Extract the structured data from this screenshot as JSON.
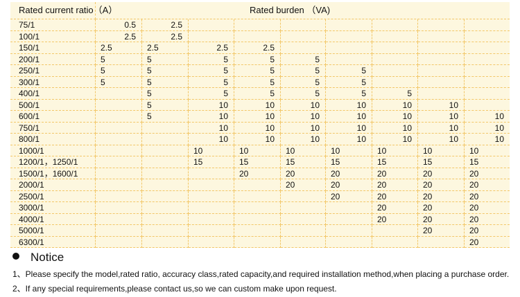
{
  "table": {
    "header": [
      "Rated current ratio（A）",
      "Rated burden （VA)"
    ],
    "rows": [
      [
        "75/1",
        "0.5",
        "2.5",
        null,
        null,
        null,
        null,
        null,
        null,
        null
      ],
      [
        "100/1",
        "2.5",
        "2.5",
        null,
        null,
        null,
        null,
        null,
        null,
        null
      ],
      [
        "150/1",
        "2.5",
        "2.5",
        "2.5",
        "2.5",
        null,
        null,
        null,
        null,
        null
      ],
      [
        "200/1",
        "5",
        "5",
        "5",
        "5",
        "5",
        null,
        null,
        null,
        null
      ],
      [
        "250/1",
        "5",
        "5",
        "5",
        "5",
        "5",
        "5",
        null,
        null,
        null
      ],
      [
        "300/1",
        "5",
        "5",
        "5",
        "5",
        "5",
        "5",
        null,
        null,
        null
      ],
      [
        "400/1",
        null,
        "5",
        "5",
        "5",
        "5",
        "5",
        "5",
        null,
        null
      ],
      [
        "500/1",
        null,
        "5",
        "10",
        "10",
        "10",
        "10",
        "10",
        "10",
        null
      ],
      [
        "600/1",
        null,
        "5",
        "10",
        "10",
        "10",
        "10",
        "10",
        "10",
        "10"
      ],
      [
        "750/1",
        null,
        null,
        "10",
        "10",
        "10",
        "10",
        "10",
        "10",
        "10"
      ],
      [
        "800/1",
        null,
        null,
        "10",
        "10",
        "10",
        "10",
        "10",
        "10",
        "10"
      ],
      [
        "1000/1",
        null,
        null,
        "10",
        "10",
        "10",
        "10",
        "10",
        "10",
        "10"
      ],
      [
        "1200/1，1250/1",
        null,
        null,
        "15",
        "15",
        "15",
        "15",
        "15",
        "15",
        "15"
      ],
      [
        "1500/1，1600/1",
        null,
        null,
        null,
        "20",
        "20",
        "20",
        "20",
        "20",
        "20"
      ],
      [
        "2000/1",
        null,
        null,
        null,
        null,
        "20",
        "20",
        "20",
        "20",
        "20"
      ],
      [
        "2500/1",
        null,
        null,
        null,
        null,
        null,
        "20",
        "20",
        "20",
        "20"
      ],
      [
        "3000/1",
        null,
        null,
        null,
        null,
        null,
        null,
        "20",
        "20",
        "20"
      ],
      [
        "4000/1",
        null,
        null,
        null,
        null,
        null,
        null,
        "20",
        "20",
        "20"
      ],
      [
        "5000/1",
        null,
        null,
        null,
        null,
        null,
        null,
        null,
        "20",
        "20"
      ],
      [
        "6300/1",
        null,
        null,
        null,
        null,
        null,
        null,
        null,
        null,
        "20"
      ]
    ]
  },
  "notice": {
    "title": "Notice",
    "items": [
      "1、Please specify the model,rated ratio, accuracy class,rated capacity,and required installation method,when placing a purchase order.",
      "2、If any special requirements,please contact us,so we can custom make upon request."
    ]
  }
}
